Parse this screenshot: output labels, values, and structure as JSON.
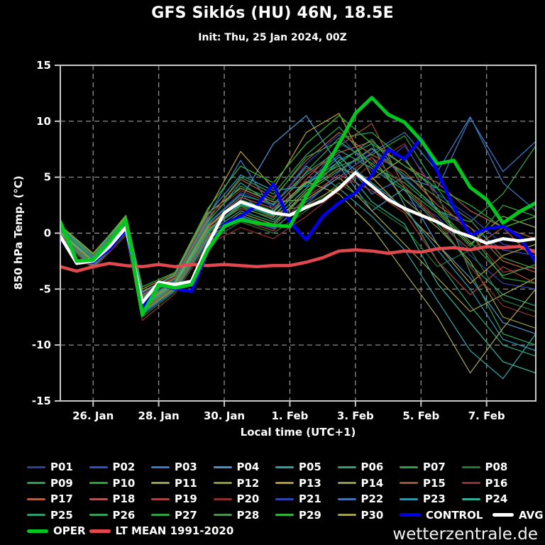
{
  "header": {
    "title": "GFS Siklós (HU) 46N, 18.5E",
    "subtitle": "Init: Thu, 25 Jan 2024, 00Z"
  },
  "watermark": "wetterzentrale.de",
  "chart_data": {
    "type": "line",
    "title": "GFS Siklós (HU) 46N, 18.5E",
    "subtitle": "Init: Thu, 25 Jan 2024, 00Z",
    "xlabel": "Local time (UTC+1)",
    "ylabel": "850 hPa Temp. (°C)",
    "x_origin": "25 Jan 2024 00Z",
    "x_domain_days": [
      0,
      14.5
    ],
    "x_ticks": [
      {
        "d": 1,
        "label": "26. Jan"
      },
      {
        "d": 3,
        "label": "28. Jan"
      },
      {
        "d": 5,
        "label": "30. Jan"
      },
      {
        "d": 7,
        "label": "1. Feb"
      },
      {
        "d": 9,
        "label": "3. Feb"
      },
      {
        "d": 11,
        "label": "5. Feb"
      },
      {
        "d": 13,
        "label": "7. Feb"
      }
    ],
    "ylim": [
      -15,
      15
    ],
    "y_ticks": [
      15,
      10,
      5,
      0,
      -5,
      -10,
      -15
    ],
    "grid": "dashed",
    "legend_position": "bottom",
    "main_t": [
      0,
      0.5,
      1,
      1.5,
      2,
      2.5,
      3,
      3.5,
      4,
      4.5,
      5,
      5.5,
      6,
      6.5,
      7,
      7.5,
      8,
      8.5,
      9,
      9.5,
      10,
      10.5,
      11,
      11.5,
      12,
      12.5,
      13,
      13.5,
      14,
      14.5
    ],
    "member_t": [
      0,
      1,
      2,
      2.5,
      3.5,
      4.5,
      5.5,
      6.5,
      7.5,
      8.5,
      9.5,
      10.5,
      11.5,
      12.5,
      13.5,
      14.5
    ],
    "series": [
      {
        "name": "P01",
        "color": "#2b3f9e",
        "width": 1.3,
        "t": "member",
        "values": [
          0.2,
          -2.2,
          0.8,
          -6.0,
          -4.2,
          0.8,
          3.5,
          1.2,
          4.0,
          8.0,
          6.5,
          3.0,
          1.5,
          -2.0,
          -4.5,
          -5.0
        ]
      },
      {
        "name": "P02",
        "color": "#2b52c8",
        "width": 1.3,
        "t": "member",
        "values": [
          -0.4,
          -3.0,
          0.2,
          -7.2,
          -5.0,
          -0.5,
          1.5,
          0.5,
          2.5,
          5.5,
          7.5,
          5.0,
          2.0,
          0.5,
          -1.5,
          -2.0
        ]
      },
      {
        "name": "P03",
        "color": "#3a78c8",
        "width": 1.3,
        "t": "member",
        "values": [
          0.5,
          -2.0,
          1.2,
          -5.5,
          -4.0,
          1.5,
          6.5,
          2.0,
          4.5,
          7.0,
          3.5,
          5.0,
          4.0,
          10.3,
          5.5,
          8.2
        ]
      },
      {
        "name": "P04",
        "color": "#4a90c8",
        "width": 1.3,
        "t": "member",
        "values": [
          0.0,
          -2.6,
          0.6,
          -6.6,
          -4.6,
          0.2,
          3.0,
          8.0,
          10.5,
          6.0,
          2.0,
          4.0,
          -1.0,
          -4.0,
          -8.0,
          -9.0
        ]
      },
      {
        "name": "P05",
        "color": "#2f9e9e",
        "width": 1.3,
        "t": "member",
        "values": [
          0.3,
          -2.4,
          0.9,
          -6.2,
          -4.4,
          1.0,
          4.5,
          2.5,
          6.0,
          4.0,
          1.5,
          -1.5,
          -6.0,
          -10.5,
          -13.0,
          -9.0
        ]
      },
      {
        "name": "P06",
        "color": "#2f9e7a",
        "width": 1.3,
        "t": "member",
        "values": [
          -0.2,
          -2.8,
          0.4,
          -6.8,
          -4.8,
          0.0,
          2.0,
          1.0,
          3.5,
          6.5,
          8.0,
          2.5,
          -2.5,
          -6.5,
          -10.0,
          -11.0
        ]
      },
      {
        "name": "P07",
        "color": "#2f9e4f",
        "width": 1.3,
        "t": "member",
        "values": [
          0.4,
          -2.1,
          1.0,
          -5.8,
          -4.1,
          1.2,
          5.0,
          3.5,
          7.0,
          9.5,
          6.0,
          4.5,
          2.0,
          1.0,
          3.5,
          7.8
        ]
      },
      {
        "name": "P08",
        "color": "#1f7a33",
        "width": 1.3,
        "t": "member",
        "values": [
          -0.5,
          -3.1,
          0.0,
          -7.5,
          -5.2,
          -0.8,
          1.0,
          0.0,
          2.0,
          4.5,
          2.5,
          0.5,
          -3.0,
          -1.5,
          -6.0,
          -7.0
        ]
      },
      {
        "name": "P09",
        "color": "#2e9e55",
        "width": 1.3,
        "t": "member",
        "values": [
          0.1,
          -2.5,
          0.7,
          -6.4,
          -4.5,
          0.5,
          3.0,
          2.0,
          5.5,
          8.5,
          9.0,
          6.5,
          3.5,
          -3.5,
          -9.0,
          -10.0
        ]
      },
      {
        "name": "P10",
        "color": "#27a33b",
        "width": 1.3,
        "t": "member",
        "values": [
          -0.1,
          -2.7,
          0.5,
          -6.7,
          -4.7,
          0.3,
          2.5,
          1.5,
          4.5,
          6.0,
          7.0,
          8.7,
          4.0,
          0.0,
          -4.0,
          -4.5
        ]
      },
      {
        "name": "P11",
        "color": "#9aa04a",
        "width": 1.3,
        "t": "member",
        "values": [
          0.6,
          -1.9,
          1.4,
          -5.2,
          -3.8,
          1.8,
          4.0,
          2.8,
          3.0,
          5.0,
          2.0,
          -1.0,
          -4.0,
          -7.0,
          -5.5,
          -4.0
        ]
      },
      {
        "name": "P12",
        "color": "#8a9a39",
        "width": 1.3,
        "t": "member",
        "values": [
          0.2,
          -2.3,
          0.8,
          -6.1,
          -4.3,
          0.7,
          2.8,
          1.8,
          2.5,
          4.2,
          6.8,
          3.0,
          0.5,
          -2.5,
          -7.5,
          -8.5
        ]
      },
      {
        "name": "P13",
        "color": "#b09a30",
        "width": 1.3,
        "t": "member",
        "values": [
          0.7,
          -1.8,
          1.5,
          -5.0,
          -3.6,
          2.0,
          7.3,
          4.0,
          9.0,
          10.7,
          5.0,
          2.0,
          -1.0,
          -4.5,
          -2.0,
          -1.0
        ]
      },
      {
        "name": "P14",
        "color": "#8f9e45",
        "width": 1.3,
        "t": "member",
        "values": [
          -0.3,
          -2.9,
          0.3,
          -7.0,
          -4.9,
          -0.2,
          1.8,
          0.8,
          3.8,
          5.8,
          4.8,
          6.8,
          2.0,
          -1.0,
          1.5,
          0.5
        ]
      },
      {
        "name": "P15",
        "color": "#9e5535",
        "width": 1.3,
        "t": "member",
        "values": [
          0.0,
          -2.4,
          0.6,
          -6.3,
          -4.4,
          0.4,
          2.2,
          1.4,
          4.8,
          7.8,
          9.8,
          4.0,
          1.0,
          -1.5,
          0.5,
          -0.5
        ]
      },
      {
        "name": "P16",
        "color": "#8f3030",
        "width": 1.3,
        "t": "member",
        "values": [
          -0.6,
          -3.2,
          -0.2,
          -7.8,
          -5.4,
          -1.0,
          0.5,
          -0.5,
          1.5,
          3.8,
          6.2,
          8.0,
          3.0,
          0.0,
          -3.5,
          -3.0
        ]
      },
      {
        "name": "P17",
        "color": "#b06040",
        "width": 1.3,
        "t": "member",
        "values": [
          0.3,
          -2.2,
          1.0,
          -5.6,
          -4.0,
          1.3,
          4.8,
          3.2,
          6.5,
          9.0,
          7.0,
          5.5,
          2.5,
          0.5,
          -2.5,
          -3.5
        ]
      },
      {
        "name": "P18",
        "color": "#b05555",
        "width": 1.3,
        "t": "member",
        "values": [
          0.1,
          -2.6,
          0.6,
          -6.5,
          -4.6,
          0.6,
          3.2,
          2.2,
          5.2,
          7.2,
          8.2,
          6.0,
          4.5,
          2.0,
          0.5,
          -2.5
        ]
      },
      {
        "name": "P19",
        "color": "#a84040",
        "width": 1.3,
        "t": "member",
        "values": [
          -0.2,
          -2.8,
          0.2,
          -6.9,
          -4.8,
          -0.3,
          1.2,
          0.2,
          3.2,
          5.2,
          3.8,
          1.8,
          -2.5,
          -5.5,
          -3.0,
          -4.5
        ]
      },
      {
        "name": "P20",
        "color": "#8c2f2f",
        "width": 1.3,
        "t": "member",
        "values": [
          0.4,
          -2.0,
          1.1,
          -5.4,
          -3.9,
          1.6,
          3.8,
          2.6,
          5.8,
          4.8,
          6.8,
          4.2,
          1.2,
          -3.0,
          -6.5,
          -7.5
        ]
      },
      {
        "name": "P21",
        "color": "#2b46b4",
        "width": 1.3,
        "t": "member",
        "values": [
          0.2,
          -2.3,
          0.9,
          -6.0,
          -4.2,
          0.9,
          3.6,
          2.4,
          6.2,
          8.8,
          5.5,
          7.8,
          3.5,
          1.5,
          -1.0,
          -1.5
        ]
      },
      {
        "name": "P22",
        "color": "#3f74b4",
        "width": 1.3,
        "t": "member",
        "values": [
          -0.4,
          -3.0,
          0.1,
          -7.3,
          -5.1,
          -0.6,
          1.4,
          0.4,
          2.8,
          5.0,
          7.2,
          9.0,
          5.5,
          10.4,
          4.5,
          2.0
        ]
      },
      {
        "name": "P23",
        "color": "#2f94a8",
        "width": 1.3,
        "t": "member",
        "values": [
          0.5,
          -2.1,
          1.3,
          -5.3,
          -3.7,
          1.7,
          5.2,
          3.8,
          4.2,
          6.8,
          4.5,
          2.2,
          -1.5,
          -5.0,
          -9.5,
          -10.5
        ]
      },
      {
        "name": "P24",
        "color": "#2fae96",
        "width": 1.3,
        "t": "member",
        "values": [
          0.0,
          -2.5,
          0.5,
          -6.6,
          -4.5,
          0.2,
          2.6,
          1.6,
          4.4,
          6.4,
          2.8,
          0.8,
          -4.5,
          -8.0,
          -11.5,
          -12.5
        ]
      },
      {
        "name": "P25",
        "color": "#2f9e6e",
        "width": 1.3,
        "t": "member",
        "values": [
          0.2,
          -2.4,
          0.8,
          -6.2,
          -4.3,
          0.8,
          3.4,
          2.6,
          5.4,
          7.4,
          5.8,
          3.8,
          0.8,
          -2.8,
          -5.5,
          -6.5
        ]
      },
      {
        "name": "P26",
        "color": "#37a058",
        "width": 1.3,
        "t": "member",
        "values": [
          -0.1,
          -2.7,
          0.4,
          -6.8,
          -4.7,
          0.1,
          2.4,
          1.2,
          4.0,
          6.2,
          8.4,
          4.8,
          2.2,
          -0.8,
          -3.8,
          -2.8
        ]
      },
      {
        "name": "P27",
        "color": "#2fa33e",
        "width": 1.3,
        "t": "member",
        "values": [
          0.3,
          -2.2,
          1.0,
          -5.7,
          -4.1,
          1.1,
          4.2,
          3.0,
          6.8,
          8.2,
          6.2,
          4.0,
          1.8,
          -1.2,
          2.5,
          1.5
        ]
      },
      {
        "name": "P28",
        "color": "#4f8f4f",
        "width": 1.3,
        "t": "member",
        "values": [
          -0.3,
          -2.9,
          0.3,
          -7.1,
          -5.0,
          -0.4,
          1.6,
          0.6,
          3.6,
          5.6,
          7.6,
          5.2,
          3.2,
          1.2,
          -2.2,
          -3.2
        ]
      },
      {
        "name": "P29",
        "color": "#30b43a",
        "width": 1.3,
        "t": "member",
        "values": [
          0.6,
          -1.9,
          1.6,
          -4.8,
          -3.5,
          2.2,
          6.0,
          4.5,
          8.0,
          10.5,
          8.0,
          6.0,
          4.0,
          2.5,
          0.5,
          1.5
        ]
      },
      {
        "name": "P30",
        "color": "#a0a050",
        "width": 1.3,
        "t": "member",
        "values": [
          0.1,
          -2.5,
          0.7,
          -6.4,
          -4.4,
          0.5,
          2.9,
          1.9,
          4.6,
          3.5,
          0.5,
          -3.5,
          -7.5,
          -12.5,
          -8.5,
          -5.0
        ]
      },
      {
        "name": "LT MEAN 1991-2020",
        "color": "#e2484e",
        "width": 4.5,
        "t": "main",
        "values": [
          -3.0,
          -3.4,
          -3.0,
          -2.7,
          -2.9,
          -3.0,
          -2.8,
          -3.0,
          -2.8,
          -2.9,
          -2.8,
          -2.9,
          -3.0,
          -2.9,
          -2.9,
          -2.6,
          -2.2,
          -1.6,
          -1.5,
          -1.6,
          -1.8,
          -1.6,
          -1.7,
          -1.4,
          -1.3,
          -1.5,
          -1.2,
          -1.3,
          -1.2,
          -1.7
        ]
      },
      {
        "name": "CONTROL",
        "color": "#0000ee",
        "width": 4.5,
        "t": "main",
        "values": [
          -0.4,
          -2.6,
          -2.6,
          -1.4,
          0.3,
          -6.6,
          -4.6,
          -5.0,
          -5.2,
          -1.6,
          0.8,
          1.5,
          2.5,
          4.4,
          1.0,
          -0.6,
          1.5,
          2.7,
          3.6,
          5.2,
          7.5,
          6.6,
          8.5,
          5.5,
          2.3,
          -0.2,
          0.4,
          0.6,
          -0.3,
          -2.6
        ]
      },
      {
        "name": "AVG",
        "color": "#ffffff",
        "width": 4.5,
        "t": "main",
        "values": [
          -0.3,
          -2.7,
          -2.5,
          -1.2,
          0.5,
          -6.2,
          -4.4,
          -4.6,
          -4.3,
          -1.0,
          1.8,
          2.8,
          2.3,
          1.8,
          1.6,
          2.3,
          2.9,
          4.0,
          5.4,
          4.2,
          3.0,
          2.2,
          1.6,
          1.0,
          0.2,
          -0.3,
          -0.9,
          -0.5,
          -0.7,
          -0.5
        ]
      },
      {
        "name": "OPER",
        "color": "#00c81e",
        "width": 5,
        "t": "main",
        "values": [
          1.0,
          -2.5,
          -2.4,
          -0.8,
          1.2,
          -7.3,
          -4.6,
          -4.9,
          -4.6,
          -1.5,
          0.6,
          1.2,
          0.9,
          0.7,
          0.6,
          3.3,
          5.5,
          8.0,
          10.7,
          12.1,
          10.6,
          9.9,
          8.3,
          6.2,
          6.5,
          4.1,
          3.0,
          0.9,
          1.9,
          2.7
        ]
      }
    ]
  },
  "legend": {
    "rows": [
      [
        {
          "label": "P01",
          "color": "#2b3f9e"
        },
        {
          "label": "P02",
          "color": "#2b52c8"
        },
        {
          "label": "P03",
          "color": "#3a78c8"
        },
        {
          "label": "P04",
          "color": "#4a90c8"
        },
        {
          "label": "P05",
          "color": "#2f9e9e"
        },
        {
          "label": "P06",
          "color": "#2f9e7a"
        },
        {
          "label": "P07",
          "color": "#2f9e4f"
        },
        {
          "label": "P08",
          "color": "#1f7a33"
        }
      ],
      [
        {
          "label": "P09",
          "color": "#2e9e55"
        },
        {
          "label": "P10",
          "color": "#27a33b"
        },
        {
          "label": "P11",
          "color": "#9aa04a"
        },
        {
          "label": "P12",
          "color": "#8a9a39"
        },
        {
          "label": "P13",
          "color": "#b09a30"
        },
        {
          "label": "P14",
          "color": "#8f9e45"
        },
        {
          "label": "P15",
          "color": "#9e5535"
        },
        {
          "label": "P16",
          "color": "#8f3030"
        }
      ],
      [
        {
          "label": "P17",
          "color": "#b06040"
        },
        {
          "label": "P18",
          "color": "#b05555"
        },
        {
          "label": "P19",
          "color": "#a84040"
        },
        {
          "label": "P20",
          "color": "#8c2f2f"
        },
        {
          "label": "P21",
          "color": "#2b46b4"
        },
        {
          "label": "P22",
          "color": "#3f74b4"
        },
        {
          "label": "P23",
          "color": "#2f94a8"
        },
        {
          "label": "P24",
          "color": "#2fae96"
        }
      ],
      [
        {
          "label": "P25",
          "color": "#2f9e6e"
        },
        {
          "label": "P26",
          "color": "#37a058"
        },
        {
          "label": "P27",
          "color": "#2fa33e"
        },
        {
          "label": "P28",
          "color": "#4f8f4f"
        },
        {
          "label": "P29",
          "color": "#30b43a"
        },
        {
          "label": "P30",
          "color": "#a0a050"
        },
        {
          "label": "CONTROL",
          "color": "#0000ee",
          "thick": true
        },
        {
          "label": "AVG",
          "color": "#ffffff",
          "thick": true,
          "x": 694
        }
      ],
      [
        {
          "label": "OPER",
          "color": "#00c81e",
          "thick": true
        },
        {
          "label": "LT MEAN 1991-2020",
          "color": "#e2484e",
          "thick": true
        }
      ]
    ]
  }
}
